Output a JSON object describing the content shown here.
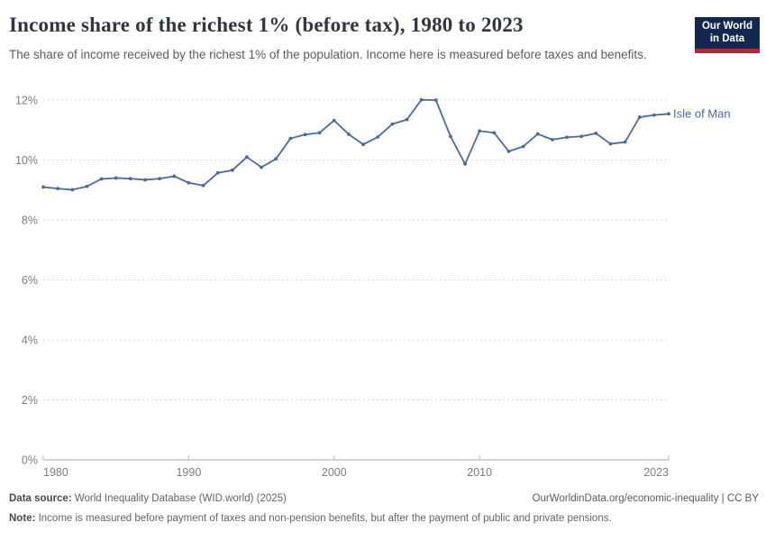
{
  "header": {
    "title": "Income share of the richest 1% (before tax), 1980 to 2023",
    "subtitle": "The share of income received by the richest 1% of the population. Income here is measured before taxes and benefits.",
    "logo": {
      "line1": "Our World",
      "line2": "in Data"
    }
  },
  "chart_data": {
    "type": "line",
    "title": "Income share of the richest 1% (before tax), 1980 to 2023",
    "xlabel": "",
    "ylabel": "",
    "xlim": [
      1980,
      2023
    ],
    "ylim": [
      0,
      12
    ],
    "grid": "horizontal dashed",
    "legend_position": "end-of-line label",
    "x_ticks": [
      1980,
      1990,
      2000,
      2010,
      2023
    ],
    "x_tick_labels": [
      "1980",
      "1990",
      "2000",
      "2010",
      "2023"
    ],
    "y_ticks": [
      0,
      2,
      4,
      6,
      8,
      10,
      12
    ],
    "y_tick_labels": [
      "0%",
      "2%",
      "4%",
      "6%",
      "8%",
      "10%",
      "12%"
    ],
    "series": [
      {
        "name": "Isle of Man",
        "x": [
          1980,
          1981,
          1982,
          1983,
          1984,
          1985,
          1986,
          1987,
          1988,
          1989,
          1990,
          1991,
          1992,
          1993,
          1994,
          1995,
          1996,
          1997,
          1998,
          1999,
          2000,
          2001,
          2002,
          2003,
          2004,
          2005,
          2006,
          2007,
          2008,
          2009,
          2010,
          2011,
          2012,
          2013,
          2014,
          2015,
          2016,
          2017,
          2018,
          2019,
          2020,
          2021,
          2022,
          2023
        ],
        "values": [
          9.1,
          9.05,
          9.01,
          9.12,
          9.37,
          9.4,
          9.38,
          9.34,
          9.38,
          9.46,
          9.24,
          9.15,
          9.57,
          9.66,
          10.1,
          9.76,
          10.04,
          10.72,
          10.85,
          10.91,
          11.32,
          10.86,
          10.52,
          10.77,
          11.2,
          11.35,
          12.01,
          12.0,
          10.79,
          9.87,
          10.97,
          10.91,
          10.29,
          10.45,
          10.87,
          10.68,
          10.76,
          10.79,
          10.89,
          10.54,
          10.6,
          11.43,
          11.5,
          11.54
        ]
      }
    ]
  },
  "colors": {
    "line": "#4C6A9C",
    "grid": "#d8d8d8",
    "axis": "#a8a8a8",
    "tick": "#b8b8b8",
    "tick_label": "#7c7c7c",
    "logo_bg": "#12294d",
    "logo_stripe": "#9e2f3b"
  },
  "footer": {
    "datasource_label": "Data source:",
    "datasource_text": " World Inequality Database (WID.world) (2025)",
    "link_text": "OurWorldinData.org/economic-inequality | CC BY",
    "note_label": "Note:",
    "note_text": " Income is measured before payment of taxes and non-pension benefits, but after the payment of public and private pensions."
  }
}
